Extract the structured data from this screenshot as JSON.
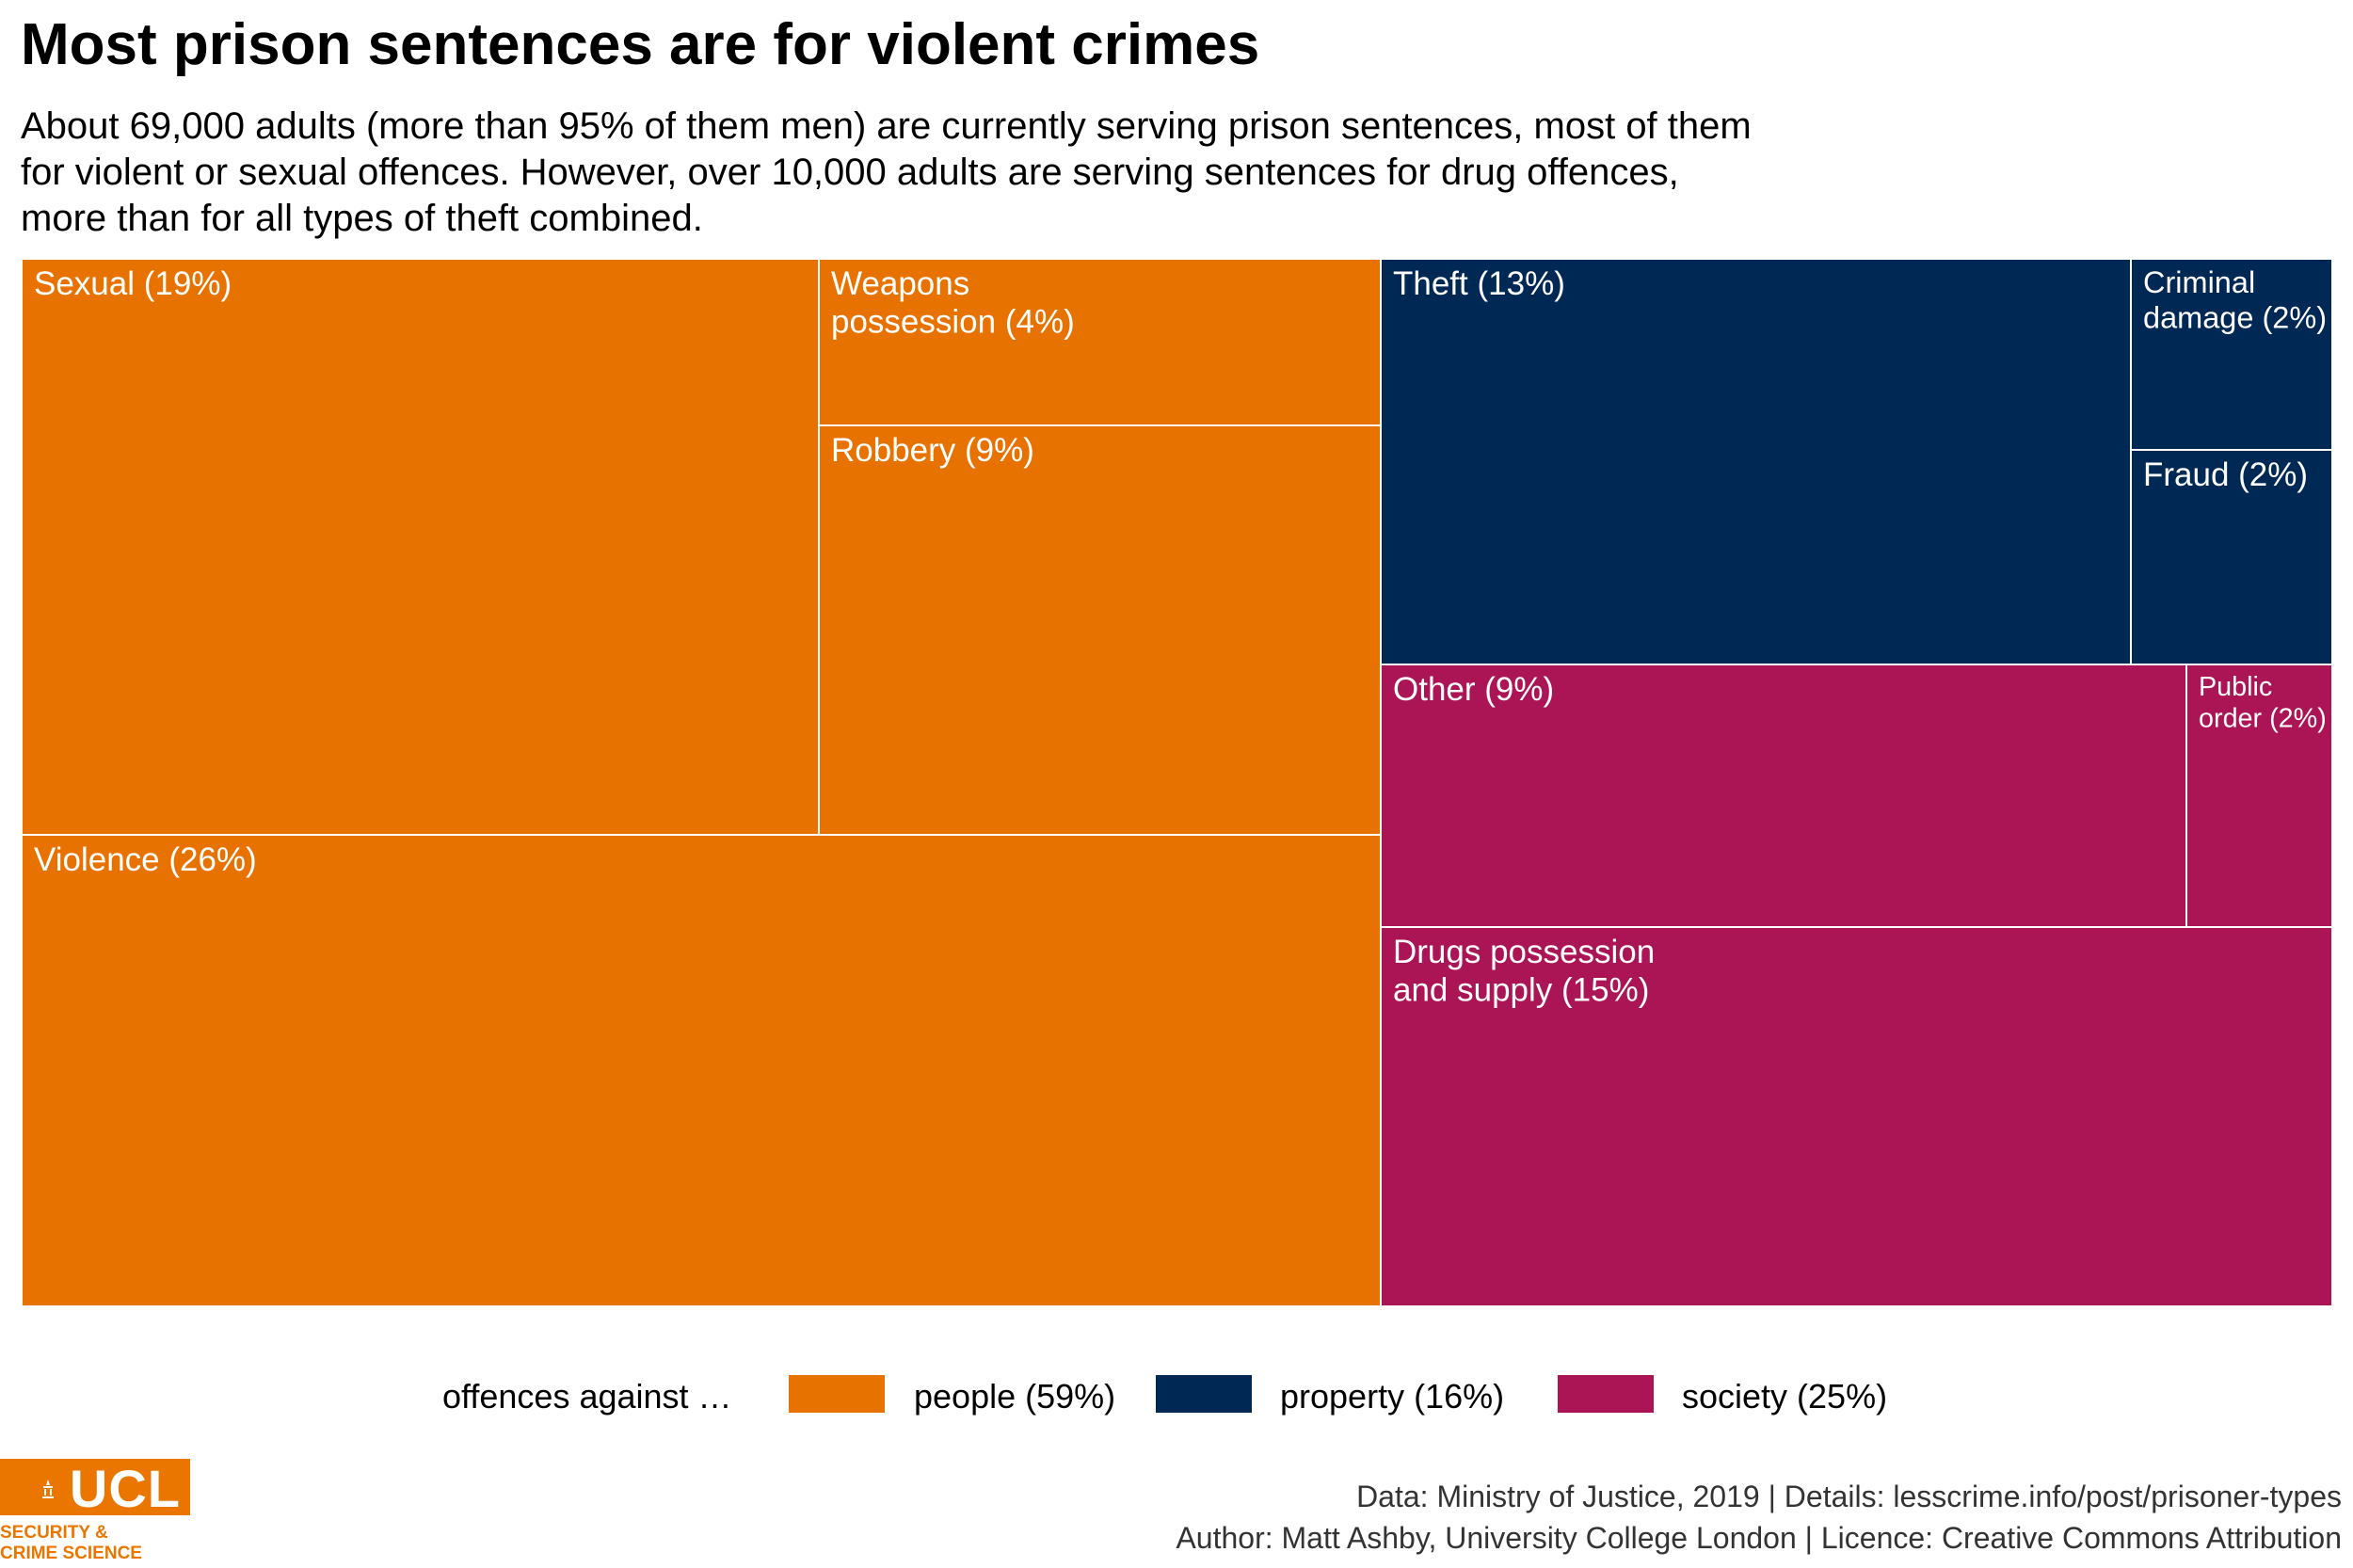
{
  "title": "Most prison sentences are for violent crimes",
  "subtitle_lines": [
    "About 69,000 adults (more than 95% of them men) are currently serving prison sentences, most of them",
    "for violent or sexual offences. However, over 10,000 adults are serving sentences for drug offences,",
    "more than for all types of theft combined."
  ],
  "chart_data": {
    "type": "treemap",
    "unit": "percent of adults serving prison sentences",
    "groups": [
      {
        "key": "people",
        "name": "people (59%)",
        "percent": 59,
        "color": "#e87200",
        "items": [
          {
            "label": "Sexual (19%)",
            "percent": 19
          },
          {
            "label": "Weapons possession (4%)",
            "percent": 4
          },
          {
            "label": "Robbery (9%)",
            "percent": 9
          },
          {
            "label": "Violence (26%)",
            "percent": 26
          }
        ]
      },
      {
        "key": "property",
        "name": "property (16%)",
        "percent": 16,
        "color": "#002855",
        "items": [
          {
            "label": "Theft (13%)",
            "percent": 13
          },
          {
            "label": "Criminal damage (2%)",
            "percent": 2
          },
          {
            "label": "Fraud (2%)",
            "percent": 2
          }
        ]
      },
      {
        "key": "society",
        "name": "society (25%)",
        "percent": 25,
        "color": "#ab1556",
        "items": [
          {
            "label": "Other (9%)",
            "percent": 9
          },
          {
            "label": "Public order (2%)",
            "percent": 2
          },
          {
            "label": "Drugs possession and supply (15%)",
            "percent": 15
          }
        ]
      }
    ],
    "legend": {
      "title": "offences against …",
      "position": "bottom"
    }
  },
  "logo": {
    "name": "UCL",
    "tagline_lines": [
      "SECURITY &",
      "CRIME SCIENCE"
    ],
    "color": "#ea7600"
  },
  "caption_lines": [
    "Data: Ministry of Justice, 2019 |  Details: lesscrime.info/post/prisoner-types",
    "Author: Matt Ashby, University College London |  Licence: Creative Commons Attribution"
  ]
}
